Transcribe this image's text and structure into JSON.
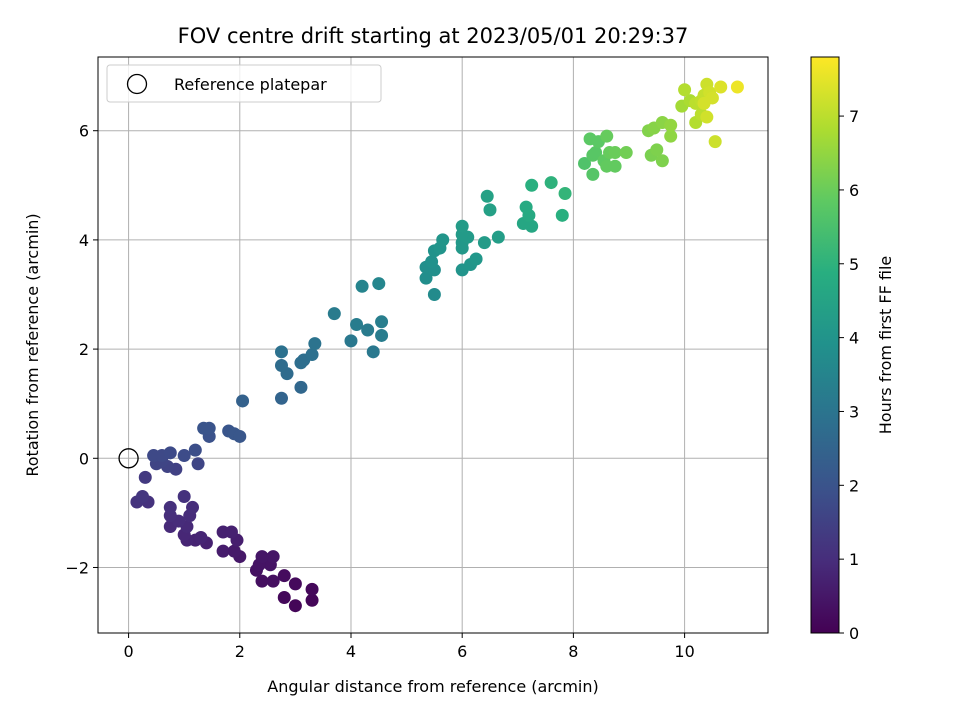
{
  "chart_data": {
    "type": "scatter",
    "title": "FOV centre drift starting at 2023/05/01 20:29:37",
    "xlabel": "Angular distance from reference (arcmin)",
    "ylabel": "Rotation from reference (arcmin)",
    "xlim": [
      -0.55,
      11.5
    ],
    "ylim": [
      -3.2,
      7.35
    ],
    "xticks": [
      0,
      2,
      4,
      6,
      8,
      10
    ],
    "yticks": [
      -2,
      0,
      2,
      4,
      6
    ],
    "ytick_labels": [
      "−2",
      "0",
      "2",
      "4",
      "6"
    ],
    "grid": true,
    "legend": {
      "placement": "top-left",
      "label": "Reference platepar"
    },
    "reference_point": {
      "x": 0,
      "y": 0
    },
    "colorbar": {
      "label": "Hours from first FF file",
      "range": [
        0,
        7.8
      ],
      "ticks": [
        0,
        1,
        2,
        3,
        4,
        5,
        6,
        7
      ],
      "colormap": "viridis"
    },
    "points": [
      {
        "x": 3.0,
        "y": -2.7,
        "c": 0.1
      },
      {
        "x": 3.3,
        "y": -2.6,
        "c": 0.1
      },
      {
        "x": 2.8,
        "y": -2.55,
        "c": 0.15
      },
      {
        "x": 3.3,
        "y": -2.4,
        "c": 0.15
      },
      {
        "x": 3.0,
        "y": -2.3,
        "c": 0.2
      },
      {
        "x": 2.6,
        "y": -2.25,
        "c": 0.3
      },
      {
        "x": 2.4,
        "y": -2.25,
        "c": 0.3
      },
      {
        "x": 2.8,
        "y": -2.15,
        "c": 0.25
      },
      {
        "x": 2.3,
        "y": -2.05,
        "c": 0.35
      },
      {
        "x": 2.55,
        "y": -1.95,
        "c": 0.4
      },
      {
        "x": 2.35,
        "y": -1.95,
        "c": 0.4
      },
      {
        "x": 2.6,
        "y": -1.8,
        "c": 0.45
      },
      {
        "x": 2.4,
        "y": -1.8,
        "c": 0.45
      },
      {
        "x": 2.0,
        "y": -1.8,
        "c": 0.5
      },
      {
        "x": 1.7,
        "y": -1.7,
        "c": 0.6
      },
      {
        "x": 1.9,
        "y": -1.7,
        "c": 0.55
      },
      {
        "x": 1.95,
        "y": -1.5,
        "c": 0.65
      },
      {
        "x": 1.4,
        "y": -1.55,
        "c": 0.7
      },
      {
        "x": 1.2,
        "y": -1.5,
        "c": 0.75
      },
      {
        "x": 1.05,
        "y": -1.5,
        "c": 0.8
      },
      {
        "x": 1.3,
        "y": -1.45,
        "c": 0.8
      },
      {
        "x": 1.0,
        "y": -1.4,
        "c": 0.85
      },
      {
        "x": 1.7,
        "y": -1.35,
        "c": 0.7
      },
      {
        "x": 1.85,
        "y": -1.35,
        "c": 0.7
      },
      {
        "x": 0.75,
        "y": -1.25,
        "c": 0.9
      },
      {
        "x": 1.05,
        "y": -1.25,
        "c": 0.9
      },
      {
        "x": 0.9,
        "y": -1.15,
        "c": 0.95
      },
      {
        "x": 0.75,
        "y": -1.05,
        "c": 1.0
      },
      {
        "x": 1.1,
        "y": -1.05,
        "c": 0.95
      },
      {
        "x": 0.75,
        "y": -0.9,
        "c": 1.05
      },
      {
        "x": 1.15,
        "y": -0.9,
        "c": 1.0
      },
      {
        "x": 1.0,
        "y": -0.7,
        "c": 1.1
      },
      {
        "x": 0.35,
        "y": -0.8,
        "c": 1.1
      },
      {
        "x": 0.15,
        "y": -0.8,
        "c": 1.15
      },
      {
        "x": 0.25,
        "y": -0.7,
        "c": 1.2
      },
      {
        "x": 0.3,
        "y": -0.35,
        "c": 1.3
      },
      {
        "x": 0.85,
        "y": -0.2,
        "c": 1.5
      },
      {
        "x": 0.7,
        "y": -0.15,
        "c": 1.55
      },
      {
        "x": 0.5,
        "y": -0.1,
        "c": 1.6
      },
      {
        "x": 1.25,
        "y": -0.1,
        "c": 1.6
      },
      {
        "x": 0.6,
        "y": -0.05,
        "c": 1.6
      },
      {
        "x": 0.45,
        "y": 0.05,
        "c": 1.7
      },
      {
        "x": 0.6,
        "y": 0.05,
        "c": 1.7
      },
      {
        "x": 0.75,
        "y": 0.1,
        "c": 1.75
      },
      {
        "x": 1.0,
        "y": 0.05,
        "c": 1.8
      },
      {
        "x": 1.2,
        "y": 0.15,
        "c": 1.85
      },
      {
        "x": 1.45,
        "y": 0.4,
        "c": 1.95
      },
      {
        "x": 1.35,
        "y": 0.55,
        "c": 2.0
      },
      {
        "x": 1.45,
        "y": 0.55,
        "c": 2.0
      },
      {
        "x": 1.8,
        "y": 0.5,
        "c": 2.05
      },
      {
        "x": 1.9,
        "y": 0.45,
        "c": 2.1
      },
      {
        "x": 2.0,
        "y": 0.4,
        "c": 2.1
      },
      {
        "x": 2.05,
        "y": 1.05,
        "c": 2.4
      },
      {
        "x": 2.75,
        "y": 1.1,
        "c": 2.5
      },
      {
        "x": 3.1,
        "y": 1.3,
        "c": 2.6
      },
      {
        "x": 2.85,
        "y": 1.55,
        "c": 2.7
      },
      {
        "x": 2.75,
        "y": 1.7,
        "c": 2.75
      },
      {
        "x": 3.1,
        "y": 1.75,
        "c": 2.8
      },
      {
        "x": 3.15,
        "y": 1.8,
        "c": 2.8
      },
      {
        "x": 3.3,
        "y": 1.9,
        "c": 2.85
      },
      {
        "x": 2.75,
        "y": 1.95,
        "c": 2.9
      },
      {
        "x": 3.35,
        "y": 2.1,
        "c": 2.95
      },
      {
        "x": 3.7,
        "y": 2.65,
        "c": 3.2
      },
      {
        "x": 4.0,
        "y": 2.15,
        "c": 3.1
      },
      {
        "x": 4.1,
        "y": 2.45,
        "c": 3.25
      },
      {
        "x": 4.3,
        "y": 2.35,
        "c": 3.2
      },
      {
        "x": 4.4,
        "y": 1.95,
        "c": 3.1
      },
      {
        "x": 4.55,
        "y": 2.25,
        "c": 3.25
      },
      {
        "x": 4.55,
        "y": 2.5,
        "c": 3.3
      },
      {
        "x": 4.2,
        "y": 3.15,
        "c": 3.5
      },
      {
        "x": 4.5,
        "y": 3.2,
        "c": 3.55
      },
      {
        "x": 5.5,
        "y": 3.0,
        "c": 3.7
      },
      {
        "x": 5.35,
        "y": 3.3,
        "c": 3.8
      },
      {
        "x": 5.35,
        "y": 3.5,
        "c": 3.85
      },
      {
        "x": 5.5,
        "y": 3.45,
        "c": 3.85
      },
      {
        "x": 5.45,
        "y": 3.6,
        "c": 3.9
      },
      {
        "x": 5.5,
        "y": 3.8,
        "c": 3.95
      },
      {
        "x": 5.6,
        "y": 3.85,
        "c": 4.0
      },
      {
        "x": 5.65,
        "y": 4.0,
        "c": 4.05
      },
      {
        "x": 6.0,
        "y": 3.45,
        "c": 4.0
      },
      {
        "x": 6.15,
        "y": 3.55,
        "c": 4.05
      },
      {
        "x": 6.25,
        "y": 3.65,
        "c": 4.1
      },
      {
        "x": 6.0,
        "y": 3.85,
        "c": 4.15
      },
      {
        "x": 6.0,
        "y": 3.95,
        "c": 4.15
      },
      {
        "x": 6.1,
        "y": 4.05,
        "c": 4.2
      },
      {
        "x": 6.0,
        "y": 4.1,
        "c": 4.2
      },
      {
        "x": 6.0,
        "y": 4.25,
        "c": 4.25
      },
      {
        "x": 6.4,
        "y": 3.95,
        "c": 4.25
      },
      {
        "x": 6.65,
        "y": 4.05,
        "c": 4.3
      },
      {
        "x": 6.5,
        "y": 4.55,
        "c": 4.4
      },
      {
        "x": 6.45,
        "y": 4.8,
        "c": 4.45
      },
      {
        "x": 7.1,
        "y": 4.3,
        "c": 4.6
      },
      {
        "x": 7.25,
        "y": 4.25,
        "c": 4.6
      },
      {
        "x": 7.2,
        "y": 4.45,
        "c": 4.7
      },
      {
        "x": 7.15,
        "y": 4.6,
        "c": 4.75
      },
      {
        "x": 7.25,
        "y": 5.0,
        "c": 4.9
      },
      {
        "x": 7.6,
        "y": 5.05,
        "c": 5.0
      },
      {
        "x": 7.8,
        "y": 4.45,
        "c": 4.9
      },
      {
        "x": 7.85,
        "y": 4.85,
        "c": 5.1
      },
      {
        "x": 8.2,
        "y": 5.4,
        "c": 5.6
      },
      {
        "x": 8.35,
        "y": 5.2,
        "c": 5.7
      },
      {
        "x": 8.35,
        "y": 5.55,
        "c": 5.75
      },
      {
        "x": 8.4,
        "y": 5.6,
        "c": 5.75
      },
      {
        "x": 8.3,
        "y": 5.85,
        "c": 5.8
      },
      {
        "x": 8.45,
        "y": 5.8,
        "c": 5.8
      },
      {
        "x": 8.55,
        "y": 5.45,
        "c": 5.85
      },
      {
        "x": 8.6,
        "y": 5.35,
        "c": 5.9
      },
      {
        "x": 8.75,
        "y": 5.35,
        "c": 5.9
      },
      {
        "x": 8.65,
        "y": 5.6,
        "c": 5.95
      },
      {
        "x": 8.6,
        "y": 5.9,
        "c": 5.95
      },
      {
        "x": 8.75,
        "y": 5.6,
        "c": 6.0
      },
      {
        "x": 8.95,
        "y": 5.6,
        "c": 6.1
      },
      {
        "x": 9.4,
        "y": 5.55,
        "c": 6.2
      },
      {
        "x": 9.5,
        "y": 5.65,
        "c": 6.25
      },
      {
        "x": 9.6,
        "y": 5.45,
        "c": 6.25
      },
      {
        "x": 9.35,
        "y": 6.0,
        "c": 6.3
      },
      {
        "x": 9.45,
        "y": 6.05,
        "c": 6.35
      },
      {
        "x": 9.6,
        "y": 6.15,
        "c": 6.4
      },
      {
        "x": 9.75,
        "y": 5.9,
        "c": 6.45
      },
      {
        "x": 9.75,
        "y": 6.1,
        "c": 6.5
      },
      {
        "x": 9.95,
        "y": 6.45,
        "c": 6.7
      },
      {
        "x": 10.1,
        "y": 6.55,
        "c": 6.8
      },
      {
        "x": 10.0,
        "y": 6.75,
        "c": 6.9
      },
      {
        "x": 10.2,
        "y": 6.15,
        "c": 6.9
      },
      {
        "x": 10.3,
        "y": 6.3,
        "c": 7.0
      },
      {
        "x": 10.2,
        "y": 6.5,
        "c": 7.0
      },
      {
        "x": 10.3,
        "y": 6.55,
        "c": 7.05
      },
      {
        "x": 10.35,
        "y": 6.65,
        "c": 7.1
      },
      {
        "x": 10.4,
        "y": 6.85,
        "c": 7.2
      },
      {
        "x": 10.45,
        "y": 6.7,
        "c": 7.25
      },
      {
        "x": 10.5,
        "y": 6.6,
        "c": 7.3
      },
      {
        "x": 10.4,
        "y": 6.25,
        "c": 7.25
      },
      {
        "x": 10.55,
        "y": 5.8,
        "c": 7.2
      },
      {
        "x": 10.65,
        "y": 6.8,
        "c": 7.4
      },
      {
        "x": 10.95,
        "y": 6.8,
        "c": 7.6
      },
      {
        "x": 10.35,
        "y": 6.5,
        "c": 7.3
      }
    ]
  }
}
